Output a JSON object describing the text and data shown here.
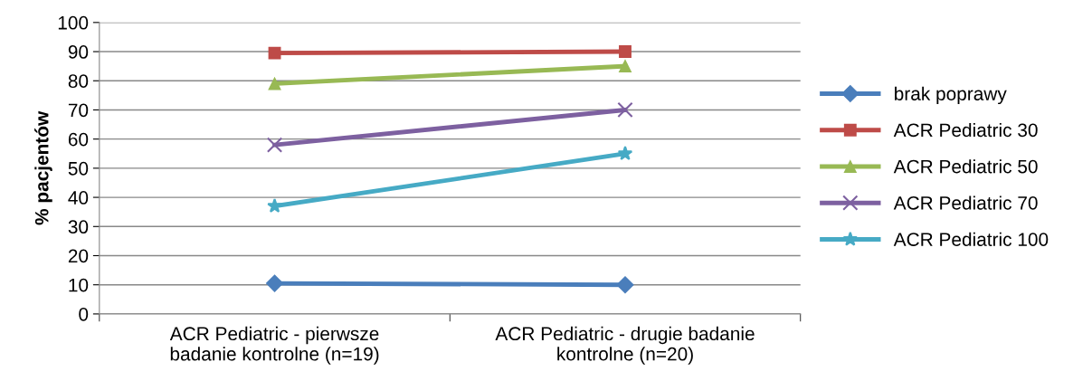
{
  "chart_data": {
    "type": "line",
    "ylabel": "% pacjentów",
    "categories": [
      "ACR Pediatric - pierwsze\nbadanie kontrolne (n=19)",
      "ACR Pediatric - drugie badanie\nkontrolne (n=20)"
    ],
    "series": [
      {
        "name": "brak poprawy",
        "color": "#4a7ebb",
        "marker": "diamond",
        "values": [
          10.5,
          10
        ]
      },
      {
        "name": "ACR Pediatric 30",
        "color": "#be4b48",
        "marker": "square",
        "values": [
          89.5,
          90
        ]
      },
      {
        "name": "ACR Pediatric 50",
        "color": "#98b954",
        "marker": "triangle",
        "values": [
          79,
          85
        ]
      },
      {
        "name": "ACR Pediatric 70",
        "color": "#7d60a0",
        "marker": "cross",
        "values": [
          58,
          70
        ]
      },
      {
        "name": "ACR Pediatric 100",
        "color": "#46aac5",
        "marker": "star",
        "values": [
          37,
          55
        ]
      }
    ],
    "ylim": [
      0,
      100
    ],
    "yticks": [
      0,
      10,
      20,
      30,
      40,
      50,
      60,
      70,
      80,
      90,
      100
    ],
    "grid": "y",
    "legend": "right"
  }
}
